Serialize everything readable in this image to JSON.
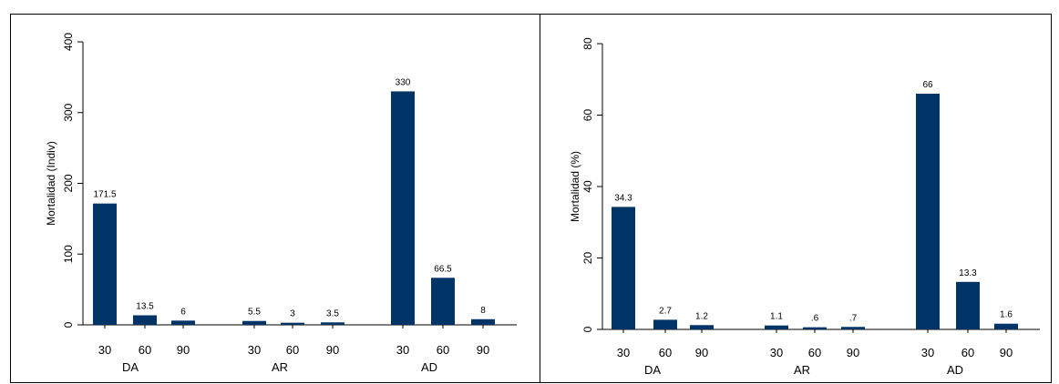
{
  "chart_data": [
    {
      "type": "bar",
      "ylabel": "Mortalidad (Indiv)",
      "ylim": [
        0,
        400
      ],
      "yticks": [
        "0",
        "100",
        "200",
        "300",
        "400"
      ],
      "groups": [
        "DA",
        "AR",
        "AD"
      ],
      "categories": [
        "30",
        "60",
        "90",
        "30",
        "60",
        "90",
        "30",
        "60",
        "90"
      ],
      "values": [
        171.5,
        13.5,
        6,
        5.5,
        3,
        3.5,
        330,
        66.5,
        8
      ],
      "value_labels": [
        "171.5",
        "13.5",
        "6",
        "5.5",
        "3",
        "3.5",
        "330",
        "66.5",
        "8"
      ],
      "bar_color": "#003366"
    },
    {
      "type": "bar",
      "ylabel": "Mortalidad (%)",
      "ylim": [
        0,
        80
      ],
      "yticks": [
        "0",
        "20",
        "40",
        "60",
        "80"
      ],
      "groups": [
        "DA",
        "AR",
        "AD"
      ],
      "categories": [
        "30",
        "60",
        "90",
        "30",
        "60",
        "90",
        "30",
        "60",
        "90"
      ],
      "values": [
        34.3,
        2.7,
        1.2,
        1.1,
        0.6,
        0.7,
        66,
        13.3,
        1.6
      ],
      "value_labels": [
        "34.3",
        "2.7",
        "1.2",
        "1.1",
        ".6",
        ".7",
        "66",
        "13.3",
        "1.6"
      ],
      "bar_color": "#003366"
    }
  ]
}
